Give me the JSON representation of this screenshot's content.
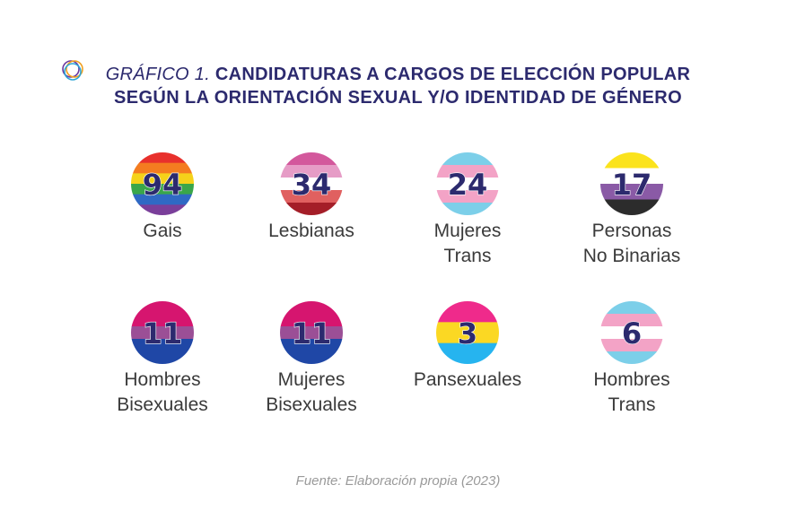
{
  "title": {
    "prefix": "GRÁFICO 1.",
    "line1": "CANDIDATURAS A CARGOS DE ELECCIÓN POPULAR",
    "line2": "SEGÚN LA ORIENTACIÓN SEXUAL Y/O IDENTIDAD DE GÉNERO"
  },
  "chart_data": {
    "type": "table",
    "categories": [
      "Gais",
      "Lesbianas",
      "Mujeres Trans",
      "Personas No Binarias",
      "Hombres Bisexuales",
      "Mujeres Bisexuales",
      "Pansexuales",
      "Hombres Trans"
    ],
    "values": [
      94,
      34,
      24,
      17,
      11,
      11,
      3,
      6
    ],
    "items": [
      {
        "value": "94",
        "label_lines": [
          "Gais"
        ],
        "flag": "rainbow",
        "colors": [
          "#e8302c",
          "#f47c20",
          "#f5d21a",
          "#3aa64a",
          "#2f69c4",
          "#7a3f9a"
        ]
      },
      {
        "value": "34",
        "label_lines": [
          "Lesbianas"
        ],
        "flag": "lesbian",
        "colors": [
          "#d3589c",
          "#e69cc6",
          "#ffffff",
          "#e06060",
          "#a41e28"
        ]
      },
      {
        "value": "24",
        "label_lines": [
          "Mujeres",
          "Trans"
        ],
        "flag": "trans",
        "colors": [
          "#7ccfe9",
          "#f3a3c6",
          "#ffffff",
          "#f3a3c6",
          "#7ccfe9"
        ]
      },
      {
        "value": "17",
        "label_lines": [
          "Personas",
          "No Binarias"
        ],
        "flag": "nonbinary",
        "colors": [
          "#fbe31c",
          "#ffffff",
          "#8a5aa6",
          "#2c2c2c"
        ]
      },
      {
        "value": "11",
        "label_lines": [
          "Hombres",
          "Bisexuales"
        ],
        "flag": "bisexual",
        "colors": [
          "#d6156f",
          "#9b4f96",
          "#1f47a6"
        ]
      },
      {
        "value": "11",
        "label_lines": [
          "Mujeres",
          "Bisexuales"
        ],
        "flag": "bisexual",
        "colors": [
          "#d6156f",
          "#9b4f96",
          "#1f47a6"
        ]
      },
      {
        "value": "3",
        "label_lines": [
          "Pansexuales"
        ],
        "flag": "pansexual",
        "colors": [
          "#ef2a8b",
          "#fbd823",
          "#26b4ef"
        ]
      },
      {
        "value": "6",
        "label_lines": [
          "Hombres",
          "Trans"
        ],
        "flag": "trans",
        "colors": [
          "#7ccfe9",
          "#f3a3c6",
          "#ffffff",
          "#f3a3c6",
          "#7ccfe9"
        ]
      }
    ]
  },
  "source": "Fuente: Elaboración propia (2023)",
  "colors": {
    "title": "#2c2a6e",
    "number": "#2c2a6e",
    "label": "#3a3a3a",
    "source": "#9a9a9a"
  }
}
